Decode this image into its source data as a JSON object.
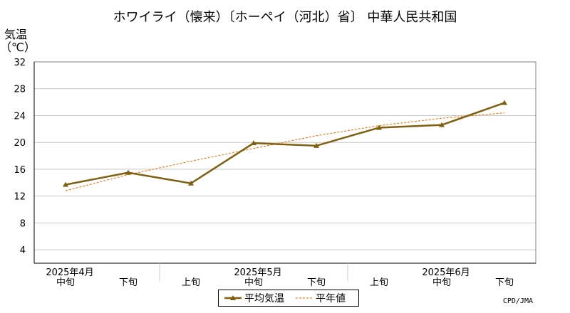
{
  "title": "ホワイライ（懐来）〔ホーペイ（河北）省〕 中華人民共和国",
  "credit": "CPD/JMA",
  "chart_data": {
    "type": "line",
    "title": "ホワイライ（懐来）〔ホーペイ（河北）省〕 中華人民共和国",
    "ylabel": "気温\n（℃）",
    "ylim": [
      2,
      32
    ],
    "yticks": [
      4,
      8,
      12,
      16,
      20,
      24,
      28,
      32
    ],
    "grid": true,
    "legend_position": "bottom-center",
    "categories": [
      "中旬",
      "下旬",
      "上旬",
      "中旬",
      "下旬",
      "上旬",
      "中旬",
      "下旬"
    ],
    "month_labels": [
      {
        "label": "2025年4月",
        "index": 0
      },
      {
        "label": "2025年5月",
        "index": 3
      },
      {
        "label": "2025年6月",
        "index": 6
      }
    ],
    "series": [
      {
        "name": "平均気温",
        "values": [
          13.7,
          15.5,
          13.9,
          19.9,
          19.5,
          22.2,
          22.6,
          25.9
        ],
        "color": "#806010",
        "style": "solid-marker"
      },
      {
        "name": "平年値",
        "values": [
          12.8,
          15.2,
          17.2,
          19.1,
          21.0,
          22.5,
          23.6,
          24.4
        ],
        "color": "#f08020",
        "style": "dashed"
      }
    ]
  },
  "colors": {
    "axis": "#000000",
    "grid": "#c8c8c8",
    "frame": "#808080"
  }
}
